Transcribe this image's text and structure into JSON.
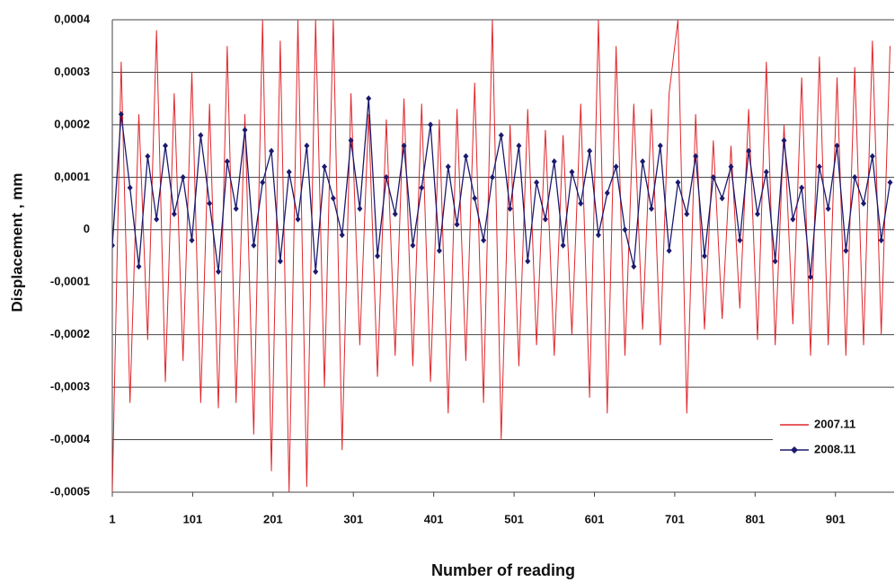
{
  "chart_data": {
    "type": "line",
    "x_label": "Number of reading",
    "y_label": "Displacement , mm",
    "x": [
      1,
      12,
      23,
      34,
      45,
      56,
      67,
      78,
      89,
      100,
      111,
      122,
      133,
      144,
      155,
      166,
      177,
      188,
      199,
      210,
      221,
      232,
      243,
      254,
      265,
      276,
      287,
      298,
      309,
      320,
      331,
      342,
      353,
      364,
      375,
      386,
      397,
      408,
      419,
      430,
      441,
      452,
      463,
      474,
      485,
      496,
      507,
      518,
      529,
      540,
      551,
      562,
      573,
      584,
      595,
      606,
      617,
      628,
      639,
      650,
      661,
      672,
      683,
      694,
      705,
      716,
      727,
      738,
      749,
      760,
      771,
      782,
      793,
      804,
      815,
      826,
      837,
      848,
      859,
      870,
      881,
      892,
      903,
      914,
      925,
      936,
      947,
      958,
      969
    ],
    "series": [
      {
        "name": "2007.11",
        "color": "#e0262b",
        "marker": false,
        "values": [
          -0.0005,
          0.00032,
          -0.00033,
          0.00022,
          -0.00021,
          0.00038,
          -0.00029,
          0.00026,
          -0.00025,
          0.0003,
          -0.00033,
          0.00024,
          -0.00034,
          0.00035,
          -0.00033,
          0.00022,
          -0.00039,
          0.0004,
          -0.00046,
          0.00036,
          -0.0005,
          0.0004,
          -0.00049,
          0.0004,
          -0.0003,
          0.0004,
          -0.00042,
          0.00026,
          -0.00022,
          0.00022,
          -0.00028,
          0.00021,
          -0.00024,
          0.00025,
          -0.00026,
          0.00024,
          -0.00029,
          0.00021,
          -0.00035,
          0.00023,
          -0.00025,
          0.00028,
          -0.00033,
          0.0004,
          -0.0004,
          0.0002,
          -0.00026,
          0.00023,
          -0.00022,
          0.00019,
          -0.00024,
          0.00018,
          -0.0002,
          0.00024,
          -0.00032,
          0.0004,
          -0.00035,
          0.00035,
          -0.00024,
          0.00024,
          -0.00019,
          0.00023,
          -0.00022,
          0.00026,
          0.0004,
          -0.00035,
          0.00022,
          -0.00019,
          0.00017,
          -0.00017,
          0.00016,
          -0.00015,
          0.00023,
          -0.00021,
          0.00032,
          -0.00022,
          0.0002,
          -0.00018,
          0.00029,
          -0.00024,
          0.00033,
          -0.00022,
          0.00029,
          -0.00024,
          0.00031,
          -0.00022,
          0.00036,
          -0.0002,
          0.00035
        ]
      },
      {
        "name": "2008.11",
        "color": "#1c1a6e",
        "marker": true,
        "values": [
          -3e-05,
          0.00022,
          8e-05,
          -7e-05,
          0.00014,
          2e-05,
          0.00016,
          3e-05,
          0.0001,
          -2e-05,
          0.00018,
          5e-05,
          -8e-05,
          0.00013,
          4e-05,
          0.00019,
          -3e-05,
          9e-05,
          0.00015,
          -6e-05,
          0.00011,
          2e-05,
          0.00016,
          -8e-05,
          0.00012,
          6e-05,
          -1e-05,
          0.00017,
          4e-05,
          0.00025,
          -5e-05,
          0.0001,
          3e-05,
          0.00016,
          -3e-05,
          8e-05,
          0.0002,
          -4e-05,
          0.00012,
          1e-05,
          0.00014,
          6e-05,
          -2e-05,
          0.0001,
          0.00018,
          4e-05,
          0.00016,
          -6e-05,
          9e-05,
          2e-05,
          0.00013,
          -3e-05,
          0.00011,
          5e-05,
          0.00015,
          -1e-05,
          7e-05,
          0.00012,
          0,
          -7e-05,
          0.00013,
          4e-05,
          0.00016,
          -4e-05,
          9e-05,
          3e-05,
          0.00014,
          -5e-05,
          0.0001,
          6e-05,
          0.00012,
          -2e-05,
          0.00015,
          3e-05,
          0.00011,
          -6e-05,
          0.00017,
          2e-05,
          8e-05,
          -9e-05,
          0.00012,
          4e-05,
          0.00016,
          -4e-05,
          0.0001,
          5e-05,
          0.00014,
          -2e-05,
          9e-05
        ]
      }
    ],
    "xlim": [
      1,
      974
    ],
    "xticks": [
      1,
      101,
      201,
      301,
      401,
      501,
      601,
      701,
      801,
      901
    ],
    "ylim": [
      -0.0005,
      0.0004
    ],
    "yticks": [
      {
        "value": -0.0005,
        "label": "-0,0005"
      },
      {
        "value": -0.0004,
        "label": "-0,0004"
      },
      {
        "value": -0.0003,
        "label": "-0,0003"
      },
      {
        "value": -0.0002,
        "label": "-0,0002"
      },
      {
        "value": -0.0001,
        "label": "-0,0001"
      },
      0,
      {
        "value": 0.0001,
        "label": "0,0001"
      },
      {
        "value": 0.0002,
        "label": "0,0002"
      },
      {
        "value": 0.0003,
        "label": "0,0003"
      },
      {
        "value": 0.0004,
        "label": "0,0004"
      }
    ],
    "grid": true,
    "legend": "lower right"
  }
}
